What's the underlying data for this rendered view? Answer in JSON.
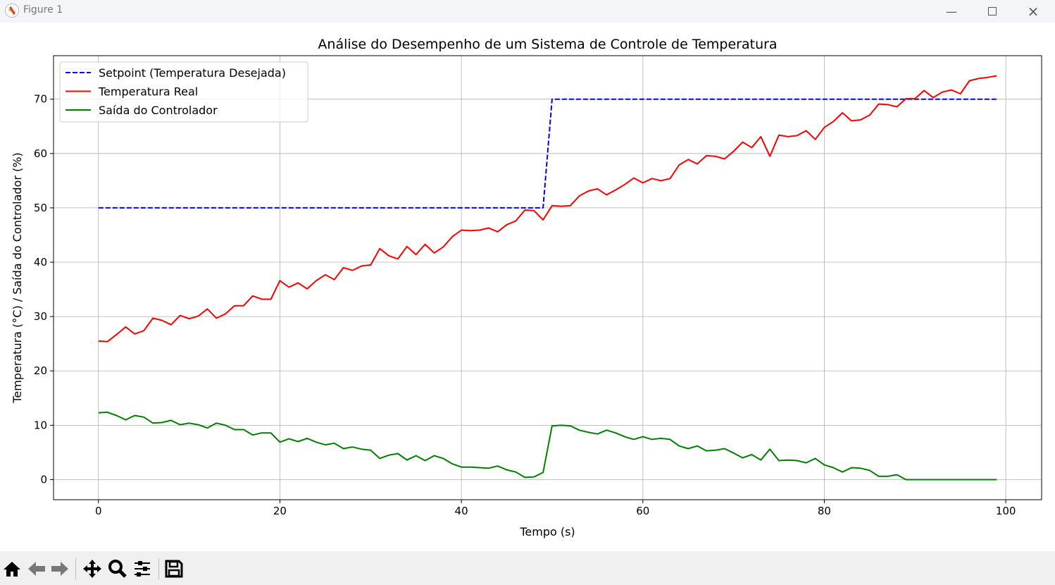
{
  "window": {
    "title": "Figure 1",
    "minimize_icon": "minimize-icon",
    "maximize_icon": "maximize-icon",
    "close_icon": "close-icon"
  },
  "toolbar": {
    "buttons": [
      "home-icon",
      "back-arrow-icon",
      "forward-arrow-icon",
      "pan-move-icon",
      "zoom-magnifier-icon",
      "configure-subplots-icon",
      "save-floppy-icon"
    ]
  },
  "chart_data": {
    "type": "line",
    "title": "Análise do Desempenho de um Sistema de Controle de Temperatura",
    "xlabel": "Tempo (s)",
    "ylabel": "Temperatura (°C) / Saída do Controlador (%)",
    "xlim": [
      -4.95,
      103.95
    ],
    "ylim": [
      -3.7,
      78.0
    ],
    "xticks": [
      0,
      20,
      40,
      60,
      80,
      100
    ],
    "yticks": [
      0,
      10,
      20,
      30,
      40,
      50,
      60,
      70
    ],
    "grid": true,
    "legend_placement": "upper-left",
    "x": "0..99 step 1",
    "series": [
      {
        "name": "Setpoint (Temperatura Desejada)",
        "color": "#0000ff",
        "style": "dashed",
        "values": [
          50,
          50,
          50,
          50,
          50,
          50,
          50,
          50,
          50,
          50,
          50,
          50,
          50,
          50,
          50,
          50,
          50,
          50,
          50,
          50,
          50,
          50,
          50,
          50,
          50,
          50,
          50,
          50,
          50,
          50,
          50,
          50,
          50,
          50,
          50,
          50,
          50,
          50,
          50,
          50,
          50,
          50,
          50,
          50,
          50,
          50,
          50,
          50,
          50,
          50,
          70,
          70,
          70,
          70,
          70,
          70,
          70,
          70,
          70,
          70,
          70,
          70,
          70,
          70,
          70,
          70,
          70,
          70,
          70,
          70,
          70,
          70,
          70,
          70,
          70,
          70,
          70,
          70,
          70,
          70,
          70,
          70,
          70,
          70,
          70,
          70,
          70,
          70,
          70,
          70,
          70,
          70,
          70,
          70,
          70,
          70,
          70,
          70,
          70,
          70
        ]
      },
      {
        "name": "Temperatura Real",
        "color": "#ff0000",
        "style": "solid",
        "values": [
          25.5,
          25.4,
          26.7,
          28.1,
          26.8,
          27.4,
          29.7,
          29.3,
          28.5,
          30.2,
          29.6,
          30.1,
          31.4,
          29.7,
          30.5,
          32.0,
          32.0,
          33.8,
          33.2,
          33.2,
          36.6,
          35.4,
          36.2,
          35.1,
          36.6,
          37.7,
          36.8,
          39.0,
          38.5,
          39.3,
          39.5,
          42.5,
          41.2,
          40.6,
          42.9,
          41.4,
          43.3,
          41.7,
          42.8,
          44.7,
          45.9,
          45.8,
          45.9,
          46.3,
          45.6,
          46.9,
          47.6,
          49.6,
          49.5,
          47.8,
          50.4,
          50.3,
          50.4,
          52.2,
          53.1,
          53.5,
          52.4,
          53.3,
          54.3,
          55.5,
          54.6,
          55.4,
          55.0,
          55.4,
          57.9,
          58.9,
          58.1,
          59.6,
          59.5,
          59.0,
          60.4,
          62.1,
          61.1,
          63.1,
          59.5,
          63.4,
          63.1,
          63.3,
          64.2,
          62.6,
          64.8,
          65.9,
          67.5,
          66.0,
          66.2,
          67.1,
          69.1,
          69.0,
          68.6,
          70.1,
          70.1,
          71.6,
          70.3,
          71.3,
          71.7,
          71.0,
          73.4,
          73.8,
          74.0,
          74.3
        ]
      },
      {
        "name": "Saída do Controlador",
        "color": "#008000",
        "style": "solid",
        "values": [
          12.3,
          12.4,
          11.8,
          11.0,
          11.8,
          11.5,
          10.4,
          10.5,
          10.9,
          10.1,
          10.4,
          10.1,
          9.5,
          10.4,
          10.0,
          9.2,
          9.2,
          8.2,
          8.6,
          8.6,
          6.9,
          7.5,
          7.0,
          7.6,
          6.9,
          6.4,
          6.7,
          5.7,
          6.0,
          5.6,
          5.4,
          3.9,
          4.5,
          4.8,
          3.6,
          4.4,
          3.5,
          4.4,
          3.9,
          2.9,
          2.3,
          2.3,
          2.2,
          2.1,
          2.5,
          1.8,
          1.4,
          0.4,
          0.5,
          1.3,
          9.9,
          10.0,
          9.9,
          9.1,
          8.7,
          8.4,
          9.1,
          8.6,
          7.9,
          7.4,
          7.9,
          7.4,
          7.6,
          7.4,
          6.2,
          5.7,
          6.2,
          5.3,
          5.4,
          5.7,
          4.9,
          4.0,
          4.6,
          3.6,
          5.6,
          3.5,
          3.6,
          3.5,
          3.1,
          3.9,
          2.7,
          2.2,
          1.4,
          2.2,
          2.1,
          1.7,
          0.6,
          0.6,
          0.9,
          0,
          0,
          0,
          0,
          0,
          0,
          0,
          0,
          0,
          0,
          0
        ]
      }
    ]
  }
}
